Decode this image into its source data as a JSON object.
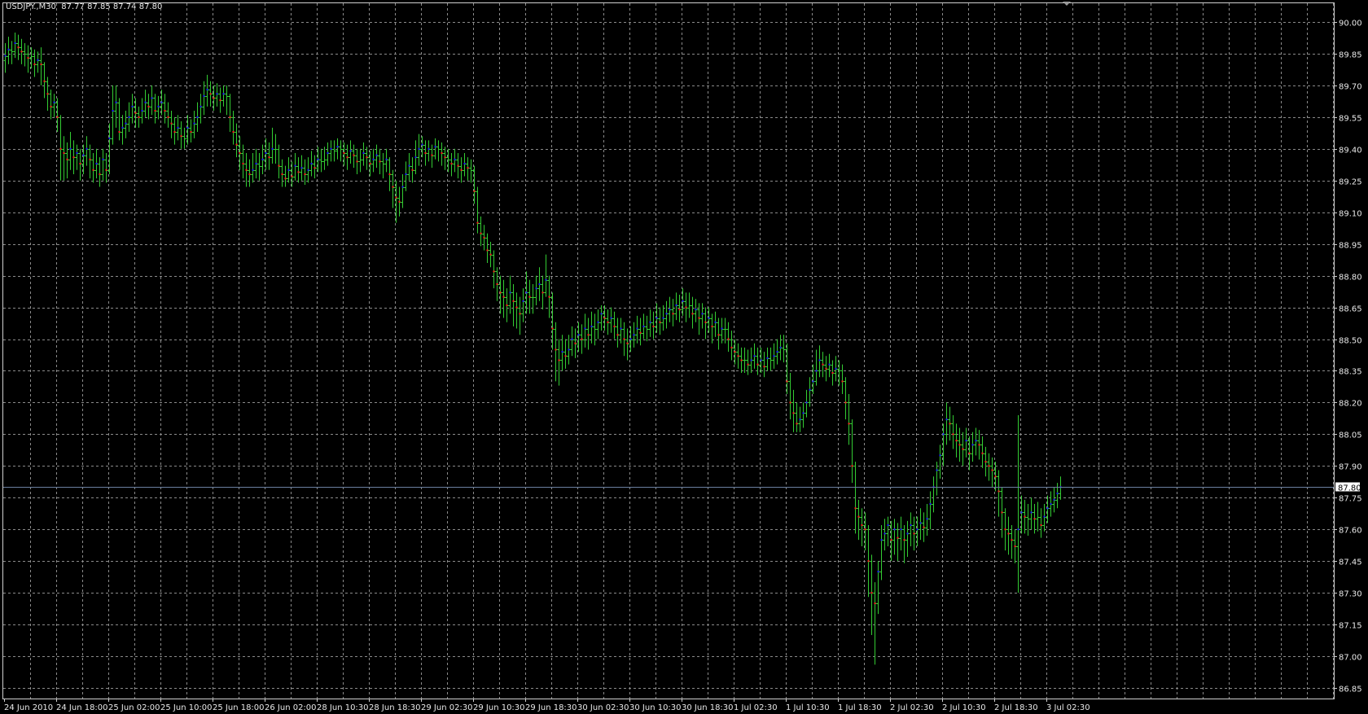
{
  "header": {
    "symbol": "USDJPY.,M30",
    "ohlc": "87.77 87.85 87.74 87.80"
  },
  "colors": {
    "background": "#000000",
    "grid": "#8a8a8a",
    "bar": "#33cc33",
    "down_dot": "#ff1a1a",
    "up_dot": "#1a1aff",
    "price_line": "#6b7fa0",
    "axis_text": "#e8e8e8"
  },
  "chart_data": {
    "type": "ohlc-bar",
    "title": "USDJPY.,M30",
    "timeframe": "M30",
    "grid": true,
    "ylim": [
      86.85,
      90.0
    ],
    "y_ticks": [
      "90.00",
      "89.85",
      "89.70",
      "89.55",
      "89.40",
      "89.25",
      "89.10",
      "88.95",
      "88.80",
      "88.65",
      "88.50",
      "88.35",
      "88.20",
      "88.05",
      "87.90",
      "87.75",
      "87.60",
      "87.45",
      "87.30",
      "87.15",
      "87.00",
      "86.85"
    ],
    "current_price": "87.80",
    "x_ticks": [
      "24 Jun 2010",
      "24 Jun 18:00",
      "25 Jun 02:00",
      "25 Jun 10:00",
      "25 Jun 18:00",
      "26 Jun 02:00",
      "28 Jun 10:30",
      "28 Jun 18:30",
      "29 Jun 02:30",
      "29 Jun 10:30",
      "29 Jun 18:30",
      "30 Jun 02:30",
      "30 Jun 10:30",
      "30 Jun 18:30",
      "1 Jul 02:30",
      "1 Jul 10:30",
      "1 Jul 18:30",
      "2 Jul 02:30",
      "2 Jul 10:30",
      "2 Jul 18:30",
      "3 Jul 02:30"
    ],
    "last_bar": {
      "open": 87.77,
      "high": 87.85,
      "low": 87.74,
      "close": 87.8
    },
    "first_open": 89.82,
    "close": [
      89.84,
      89.87,
      89.86,
      89.9,
      89.88,
      89.86,
      89.85,
      89.83,
      89.84,
      89.8,
      89.82,
      89.8,
      89.72,
      89.66,
      89.6,
      89.62,
      89.55,
      89.4,
      89.38,
      89.35,
      89.4,
      89.36,
      89.38,
      89.33,
      89.37,
      89.4,
      89.35,
      89.3,
      89.33,
      89.28,
      89.35,
      89.3,
      89.45,
      89.58,
      89.62,
      89.48,
      89.5,
      89.52,
      89.55,
      89.6,
      89.57,
      89.55,
      89.58,
      89.62,
      89.6,
      89.64,
      89.58,
      89.6,
      89.62,
      89.58,
      89.55,
      89.52,
      89.48,
      89.5,
      89.46,
      89.45,
      89.5,
      89.48,
      89.52,
      89.55,
      89.6,
      89.65,
      89.68,
      89.66,
      89.64,
      89.66,
      89.63,
      89.66,
      89.65,
      89.55,
      89.48,
      89.42,
      89.38,
      89.33,
      89.3,
      89.28,
      89.3,
      89.33,
      89.32,
      89.35,
      89.38,
      89.36,
      89.4,
      89.4,
      89.32,
      89.28,
      89.26,
      89.3,
      89.27,
      89.32,
      89.29,
      89.31,
      89.28,
      89.3,
      89.33,
      89.31,
      89.35,
      89.34,
      89.35,
      89.38,
      89.4,
      89.39,
      89.41,
      89.4,
      89.38,
      89.36,
      89.39,
      89.37,
      89.34,
      89.35,
      89.38,
      89.36,
      89.33,
      89.35,
      89.37,
      89.34,
      89.33,
      89.35,
      89.28,
      89.22,
      89.17,
      89.15,
      89.22,
      89.28,
      89.32,
      89.3,
      89.36,
      89.4,
      89.42,
      89.38,
      89.4,
      89.37,
      89.41,
      89.4,
      89.38,
      89.36,
      89.35,
      89.33,
      89.35,
      89.32,
      89.3,
      89.33,
      89.31,
      89.3,
      89.2,
      89.05,
      89.0,
      88.98,
      88.92,
      88.9,
      88.82,
      88.76,
      88.72,
      88.7,
      88.66,
      88.72,
      88.68,
      88.65,
      88.62,
      88.68,
      88.72,
      88.7,
      88.7,
      88.74,
      88.76,
      88.72,
      88.78,
      88.7,
      88.55,
      88.45,
      88.4,
      88.44,
      88.42,
      88.45,
      88.5,
      88.48,
      88.52,
      88.5,
      88.55,
      88.52,
      88.56,
      88.55,
      88.58,
      88.62,
      88.6,
      88.58,
      88.6,
      88.56,
      88.52,
      88.55,
      88.5,
      88.48,
      88.5,
      88.52,
      88.55,
      88.53,
      88.56,
      88.55,
      88.58,
      88.56,
      88.6,
      88.58,
      88.6,
      88.62,
      88.64,
      88.62,
      88.66,
      88.64,
      88.68,
      88.65,
      88.66,
      88.62,
      88.64,
      88.6,
      88.62,
      88.58,
      88.6,
      88.56,
      88.58,
      88.52,
      88.55,
      88.55,
      88.5,
      88.46,
      88.44,
      88.42,
      88.4,
      88.4,
      88.38,
      88.4,
      88.42,
      88.38,
      88.4,
      88.37,
      88.41,
      88.4,
      88.42,
      88.44,
      88.46,
      88.45,
      88.3,
      88.2,
      88.15,
      88.1,
      88.12,
      88.15,
      88.2,
      88.26,
      88.3,
      88.35,
      88.4,
      88.38,
      88.36,
      88.38,
      88.34,
      88.36,
      88.35,
      88.3,
      88.2,
      88.1,
      87.9,
      87.7,
      87.66,
      87.62,
      87.6,
      87.45,
      87.3,
      87.25,
      87.4,
      87.55,
      87.58,
      87.62,
      87.55,
      87.6,
      87.56,
      87.6,
      87.55,
      87.58,
      87.62,
      87.58,
      87.6,
      87.63,
      87.61,
      87.65,
      87.72,
      87.8,
      87.88,
      87.95,
      88.05,
      88.12,
      88.1,
      88.05,
      88.02,
      88.0,
      87.98,
      88.02,
      87.96,
      88.0,
      88.02,
      88.0,
      87.96,
      87.92,
      87.9,
      87.88,
      87.85,
      87.78,
      87.68,
      87.6,
      87.58,
      87.55,
      87.52,
      87.6,
      87.68,
      87.66,
      87.65,
      87.68,
      87.65,
      87.66,
      87.62,
      87.66,
      87.7,
      87.72,
      87.74,
      87.77,
      87.8
    ],
    "high": [
      89.9,
      89.93,
      89.91,
      89.95,
      89.94,
      89.92,
      89.9,
      89.89,
      89.88,
      89.87,
      89.86,
      89.88,
      89.81,
      89.74,
      89.68,
      89.66,
      89.64,
      89.56,
      89.46,
      89.43,
      89.48,
      89.44,
      89.42,
      89.4,
      89.42,
      89.46,
      89.42,
      89.38,
      89.4,
      89.36,
      89.4,
      89.38,
      89.52,
      89.7,
      89.7,
      89.64,
      89.56,
      89.58,
      89.62,
      89.66,
      89.64,
      89.6,
      89.64,
      89.68,
      89.66,
      89.7,
      89.66,
      89.65,
      89.68,
      89.66,
      89.62,
      89.58,
      89.55,
      89.56,
      89.53,
      89.5,
      89.56,
      89.54,
      89.58,
      89.62,
      89.66,
      89.72,
      89.75,
      89.72,
      89.7,
      89.71,
      89.69,
      89.7,
      89.7,
      89.66,
      89.58,
      89.52,
      89.46,
      89.42,
      89.38,
      89.35,
      89.38,
      89.4,
      89.38,
      89.42,
      89.45,
      89.43,
      89.5,
      89.47,
      89.42,
      89.35,
      89.32,
      89.36,
      89.34,
      89.38,
      89.36,
      89.37,
      89.35,
      89.36,
      89.39,
      89.37,
      89.41,
      89.4,
      89.41,
      89.43,
      89.44,
      89.44,
      89.45,
      89.44,
      89.43,
      89.42,
      89.44,
      89.42,
      89.4,
      89.4,
      89.43,
      89.41,
      89.39,
      89.4,
      89.42,
      89.4,
      89.38,
      89.4,
      89.36,
      89.3,
      89.25,
      89.22,
      89.28,
      89.34,
      89.38,
      89.36,
      89.44,
      89.47,
      89.46,
      89.44,
      89.44,
      89.42,
      89.45,
      89.44,
      89.43,
      89.41,
      89.4,
      89.38,
      89.4,
      89.38,
      89.36,
      89.38,
      89.36,
      89.35,
      89.32,
      89.22,
      89.08,
      89.04,
      89.0,
      88.96,
      88.92,
      88.84,
      88.8,
      88.78,
      88.74,
      88.8,
      88.76,
      88.72,
      88.7,
      88.74,
      88.82,
      88.78,
      88.76,
      88.8,
      88.84,
      88.8,
      88.9,
      88.8,
      88.72,
      88.58,
      88.5,
      88.52,
      88.5,
      88.52,
      88.56,
      88.55,
      88.58,
      88.57,
      88.62,
      88.6,
      88.63,
      88.62,
      88.64,
      88.66,
      88.66,
      88.64,
      88.65,
      88.63,
      88.6,
      88.6,
      88.58,
      88.55,
      88.56,
      88.58,
      88.61,
      88.6,
      88.62,
      88.61,
      88.64,
      88.63,
      88.67,
      88.65,
      88.66,
      88.68,
      88.7,
      88.69,
      88.72,
      88.71,
      88.74,
      88.72,
      88.72,
      88.7,
      88.69,
      88.67,
      88.67,
      88.65,
      88.65,
      88.62,
      88.63,
      88.6,
      88.6,
      88.6,
      88.58,
      88.54,
      88.5,
      88.48,
      88.46,
      88.46,
      88.45,
      88.46,
      88.48,
      88.46,
      88.46,
      88.44,
      88.46,
      88.46,
      88.48,
      88.5,
      88.52,
      88.52,
      88.48,
      88.34,
      88.26,
      88.2,
      88.18,
      88.2,
      88.26,
      88.32,
      88.38,
      88.45,
      88.47,
      88.44,
      88.42,
      88.43,
      88.4,
      88.42,
      88.4,
      88.38,
      88.32,
      88.24,
      88.12,
      87.92,
      87.74,
      87.7,
      87.68,
      87.62,
      87.48,
      87.35,
      87.45,
      87.62,
      87.65,
      87.66,
      87.64,
      87.65,
      87.63,
      87.66,
      87.62,
      87.64,
      87.68,
      87.66,
      87.66,
      87.7,
      87.68,
      87.72,
      87.78,
      87.85,
      87.92,
      88.0,
      88.1,
      88.2,
      88.18,
      88.14,
      88.1,
      88.08,
      88.06,
      88.08,
      88.04,
      88.06,
      88.08,
      88.07,
      88.04,
      87.99,
      87.96,
      87.94,
      87.92,
      87.88,
      87.8,
      87.7,
      87.66,
      87.62,
      87.6,
      88.14,
      87.76,
      87.74,
      87.72,
      87.75,
      87.72,
      87.73,
      87.7,
      87.72,
      87.76,
      87.78,
      87.8,
      87.82,
      87.85
    ],
    "low": [
      89.76,
      89.8,
      89.8,
      89.83,
      89.82,
      89.8,
      89.79,
      89.76,
      89.78,
      89.74,
      89.76,
      89.7,
      89.64,
      89.58,
      89.54,
      89.55,
      89.48,
      89.25,
      89.25,
      89.26,
      89.3,
      89.28,
      89.3,
      89.25,
      89.28,
      89.32,
      89.26,
      89.24,
      89.26,
      89.22,
      89.25,
      89.24,
      89.28,
      89.42,
      89.5,
      89.44,
      89.42,
      89.45,
      89.48,
      89.52,
      89.5,
      89.5,
      89.52,
      89.55,
      89.54,
      89.56,
      89.52,
      89.54,
      89.56,
      89.52,
      89.5,
      89.45,
      89.42,
      89.44,
      89.4,
      89.4,
      89.42,
      89.43,
      89.45,
      89.48,
      89.52,
      89.56,
      89.6,
      89.6,
      89.58,
      89.6,
      89.57,
      89.6,
      89.56,
      89.48,
      89.42,
      89.36,
      89.3,
      89.26,
      89.22,
      89.22,
      89.24,
      89.26,
      89.25,
      89.28,
      89.3,
      89.3,
      89.33,
      89.33,
      89.26,
      89.22,
      89.22,
      89.24,
      89.22,
      89.25,
      89.24,
      89.25,
      89.23,
      89.24,
      89.27,
      89.26,
      89.29,
      89.29,
      89.3,
      89.32,
      89.34,
      89.34,
      89.35,
      89.34,
      89.32,
      89.3,
      89.33,
      89.31,
      89.28,
      89.29,
      89.32,
      89.3,
      89.27,
      89.29,
      89.31,
      89.28,
      89.26,
      89.29,
      89.2,
      89.12,
      89.05,
      89.08,
      89.12,
      89.2,
      89.25,
      89.24,
      89.28,
      89.32,
      89.36,
      89.32,
      89.34,
      89.31,
      89.35,
      89.34,
      89.32,
      89.3,
      89.29,
      89.27,
      89.29,
      89.26,
      89.24,
      89.27,
      89.25,
      89.24,
      89.14,
      89.0,
      88.94,
      88.92,
      88.86,
      88.84,
      88.74,
      88.68,
      88.62,
      88.6,
      88.58,
      88.62,
      88.56,
      88.55,
      88.52,
      88.58,
      88.62,
      88.62,
      88.62,
      88.66,
      88.68,
      88.64,
      88.7,
      88.6,
      88.45,
      88.3,
      88.28,
      88.35,
      88.36,
      88.38,
      88.42,
      88.41,
      88.44,
      88.43,
      88.46,
      88.45,
      88.48,
      88.47,
      88.5,
      88.54,
      88.54,
      88.52,
      88.53,
      88.5,
      88.46,
      88.48,
      88.42,
      88.4,
      88.44,
      88.46,
      88.48,
      88.47,
      88.5,
      88.49,
      88.51,
      88.5,
      88.53,
      88.52,
      88.54,
      88.55,
      88.58,
      88.56,
      88.59,
      88.58,
      88.61,
      88.58,
      88.6,
      88.55,
      88.58,
      88.52,
      88.55,
      88.5,
      88.53,
      88.48,
      88.51,
      88.45,
      88.48,
      88.48,
      88.44,
      88.4,
      88.38,
      88.36,
      88.34,
      88.34,
      88.33,
      88.34,
      88.36,
      88.33,
      88.34,
      88.32,
      88.35,
      88.35,
      88.36,
      88.38,
      88.4,
      88.39,
      88.24,
      88.12,
      88.06,
      88.06,
      88.06,
      88.08,
      88.13,
      88.18,
      88.24,
      88.28,
      88.32,
      88.32,
      88.3,
      88.32,
      88.28,
      88.3,
      88.28,
      88.24,
      88.12,
      88.0,
      87.82,
      87.58,
      87.55,
      87.52,
      87.5,
      87.28,
      87.1,
      86.96,
      87.2,
      87.36,
      87.5,
      87.52,
      87.45,
      87.48,
      87.45,
      87.5,
      87.44,
      87.47,
      87.52,
      87.5,
      87.52,
      87.55,
      87.54,
      87.57,
      87.6,
      87.68,
      87.76,
      87.84,
      87.9,
      88.0,
      88.02,
      87.98,
      87.94,
      87.92,
      87.9,
      87.94,
      87.88,
      87.92,
      87.95,
      87.93,
      87.89,
      87.85,
      87.83,
      87.8,
      87.78,
      87.66,
      87.56,
      87.5,
      87.48,
      87.46,
      87.44,
      87.3,
      87.58,
      87.58,
      87.57,
      87.6,
      87.58,
      87.59,
      87.56,
      87.59,
      87.63,
      87.66,
      87.68,
      87.7,
      87.74
    ]
  }
}
